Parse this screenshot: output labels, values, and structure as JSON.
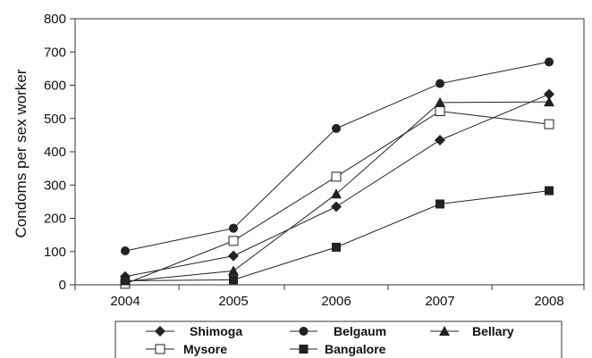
{
  "chart_data": {
    "type": "line",
    "x": [
      "2004",
      "2005",
      "2006",
      "2007",
      "2008"
    ],
    "ylabel": "Condoms per sex worker",
    "xlabel": "",
    "ylim": [
      0,
      800
    ],
    "yticks": [
      "0",
      "100",
      "200",
      "300",
      "400",
      "500",
      "600",
      "700",
      "800"
    ],
    "grid": false,
    "legend_position": "bottom",
    "series": [
      {
        "name": "Shimoga",
        "marker": "diamond",
        "values": [
          25,
          87,
          235,
          435,
          573
        ]
      },
      {
        "name": "Belgaum",
        "marker": "circle",
        "values": [
          102,
          170,
          470,
          605,
          670
        ]
      },
      {
        "name": "Bellary",
        "marker": "triangle",
        "values": [
          10,
          42,
          273,
          548,
          550
        ]
      },
      {
        "name": "Mysore",
        "marker": "square-open",
        "values": [
          3,
          132,
          325,
          522,
          483
        ]
      },
      {
        "name": "Bangalore",
        "marker": "square-filled",
        "values": [
          12,
          15,
          113,
          243,
          283
        ]
      }
    ],
    "line_color": "#222222"
  }
}
